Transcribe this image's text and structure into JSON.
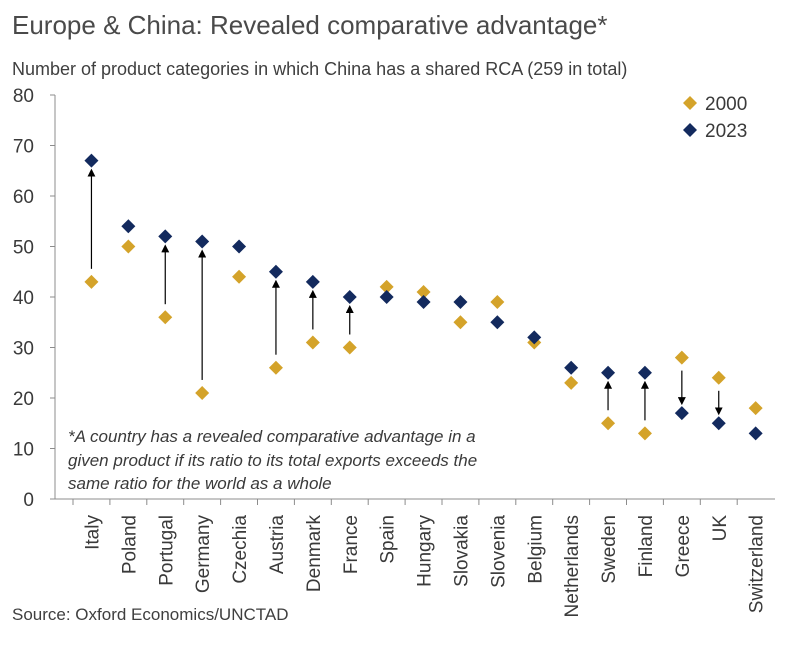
{
  "header": {
    "title": "Europe & China: Revealed comparative advantage*",
    "subtitle": "Number of product categories in which China has a shared RCA (259 in total)"
  },
  "footer": {
    "source": "Source: Oxford Economics/UNCTAD"
  },
  "note": {
    "lines": [
      "*A country has a revealed comparative advantage in a",
      "given product if its ratio to its total exports exceeds the",
      "same ratio for the world as a whole"
    ]
  },
  "colors": {
    "series_2000": "#d4a32a",
    "series_2023": "#132a5e",
    "axis": "#8c8c8c",
    "arrow": "#000000"
  },
  "chart_data": {
    "type": "scatter",
    "title": "Europe & China: Revealed comparative advantage*",
    "subtitle": "Number of product categories in which China has a shared RCA (259 in total)",
    "xlabel": "",
    "ylabel": "",
    "ylim": [
      0,
      80
    ],
    "yticks": [
      0,
      10,
      20,
      30,
      40,
      50,
      60,
      70,
      80
    ],
    "grid": false,
    "legend_position": "top-right",
    "categories": [
      "Italy",
      "Poland",
      "Portugal",
      "Germany",
      "Czechia",
      "Austria",
      "Denmark",
      "France",
      "Spain",
      "Hungary",
      "Slovakia",
      "Slovenia",
      "Belgium",
      "Netherlands",
      "Sweden",
      "Finland",
      "Greece",
      "UK",
      "Switzerland"
    ],
    "series": [
      {
        "name": "2000",
        "values": [
          43,
          50,
          36,
          21,
          44,
          26,
          31,
          30,
          42,
          41,
          35,
          39,
          31,
          23,
          15,
          13,
          28,
          24,
          18
        ]
      },
      {
        "name": "2023",
        "values": [
          67,
          54,
          52,
          51,
          50,
          45,
          43,
          40,
          40,
          39,
          39,
          35,
          32,
          26,
          25,
          25,
          17,
          15,
          13
        ]
      }
    ],
    "arrows": [
      "Italy",
      "Portugal",
      "Germany",
      "Austria",
      "Denmark",
      "France",
      "Sweden",
      "Finland",
      "Greece",
      "UK"
    ]
  }
}
